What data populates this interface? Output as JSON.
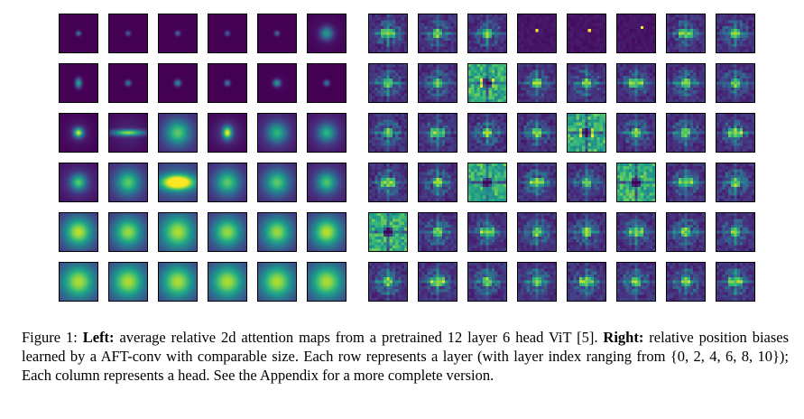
{
  "figure": {
    "left_panel": {
      "rows": 6,
      "cols": 6,
      "colormap": "viridis",
      "tile_color_low": "#440154",
      "tile_color_high": "#fde725"
    },
    "right_panel": {
      "rows": 6,
      "cols": 8,
      "colormap": "viridis"
    }
  },
  "caption": {
    "label": "Figure 1:",
    "left_bold": "Left:",
    "left_text": "average relative 2d attention maps from a pretrained 12 layer 6 head ViT [5].",
    "right_bold": "Right:",
    "right_text": "relative position biases learned by a AFT-conv with comparable size. Each row represents a layer (with layer index ranging from {0, 2, 4, 6, 8, 10}); Each column represents a head. See the Appendix for a more complete version."
  }
}
